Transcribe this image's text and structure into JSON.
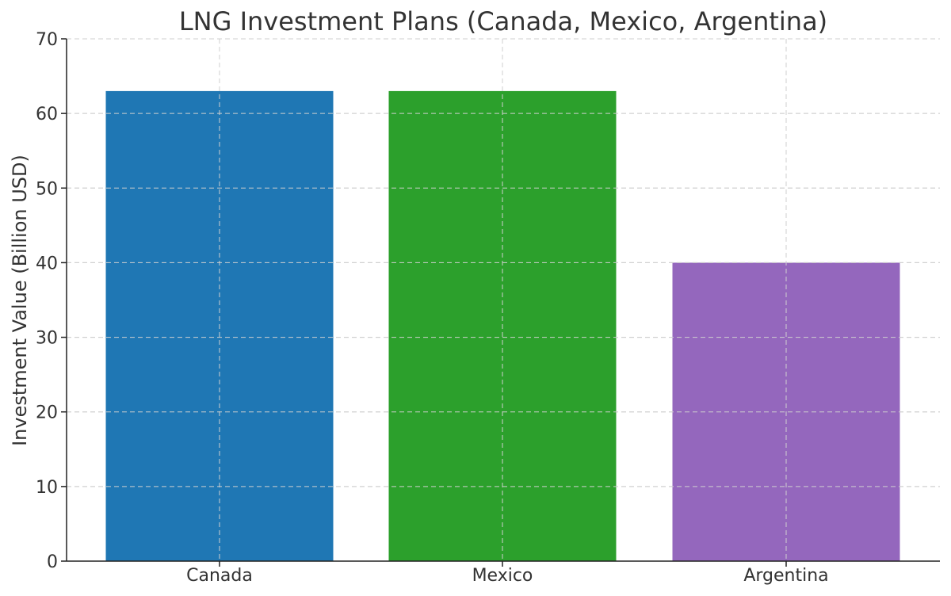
{
  "chart_data": {
    "type": "bar",
    "title": "LNG Investment Plans (Canada, Mexico, Argentina)",
    "xlabel": "",
    "ylabel": "Investment Value (Billion USD)",
    "categories": [
      "Canada",
      "Mexico",
      "Argentina"
    ],
    "values": [
      63,
      63,
      40
    ],
    "colors": [
      "#1f77b4",
      "#2ca02c",
      "#9467bd"
    ],
    "ylim": [
      0,
      70
    ],
    "yticks": [
      0,
      10,
      20,
      30,
      40,
      50,
      60,
      70
    ],
    "ytick_labels": [
      "0",
      "10",
      "20",
      "30",
      "40",
      "50",
      "60",
      "70"
    ],
    "grid": true,
    "legend": "none"
  }
}
